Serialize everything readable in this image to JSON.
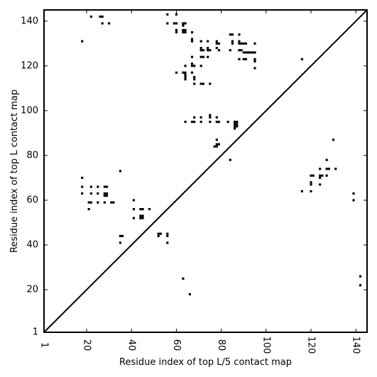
{
  "chart_data": {
    "type": "scatter",
    "xlabel": "Residue index of top L/5 contact map",
    "ylabel": "Residue index of top L contact map",
    "xlim": [
      1,
      145
    ],
    "ylim": [
      1,
      145
    ],
    "xticks": [
      1,
      20,
      40,
      60,
      80,
      100,
      120,
      140
    ],
    "yticks": [
      1,
      20,
      40,
      60,
      80,
      100,
      120,
      140
    ],
    "grid": false,
    "diagonal": true,
    "marker_color": "#000000",
    "points": [
      [
        22,
        142
      ],
      [
        26,
        142
      ],
      [
        27,
        142
      ],
      [
        27,
        139
      ],
      [
        30,
        139
      ],
      [
        18,
        131
      ],
      [
        56,
        143
      ],
      [
        60,
        143
      ],
      [
        56,
        139
      ],
      [
        59,
        139
      ],
      [
        60,
        139
      ],
      [
        63,
        139
      ],
      [
        64,
        139
      ],
      [
        63,
        138
      ],
      [
        60,
        136
      ],
      [
        63,
        136
      ],
      [
        64,
        136
      ],
      [
        60,
        135
      ],
      [
        63,
        135
      ],
      [
        64,
        135
      ],
      [
        67,
        135
      ],
      [
        67,
        132
      ],
      [
        67,
        131
      ],
      [
        71,
        131
      ],
      [
        74,
        131
      ],
      [
        78,
        131
      ],
      [
        78,
        130
      ],
      [
        79,
        130
      ],
      [
        71,
        128
      ],
      [
        74,
        128
      ],
      [
        78,
        128
      ],
      [
        71,
        127
      ],
      [
        72,
        127
      ],
      [
        74,
        127
      ],
      [
        75,
        127
      ],
      [
        79,
        127
      ],
      [
        84,
        134
      ],
      [
        85,
        134
      ],
      [
        88,
        134
      ],
      [
        85,
        131
      ],
      [
        88,
        131
      ],
      [
        85,
        130
      ],
      [
        88,
        130
      ],
      [
        89,
        130
      ],
      [
        90,
        130
      ],
      [
        91,
        130
      ],
      [
        95,
        130
      ],
      [
        84,
        127
      ],
      [
        88,
        127
      ],
      [
        89,
        127
      ],
      [
        90,
        126
      ],
      [
        91,
        126
      ],
      [
        92,
        126
      ],
      [
        93,
        126
      ],
      [
        94,
        126
      ],
      [
        95,
        126
      ],
      [
        71,
        124
      ],
      [
        72,
        124
      ],
      [
        74,
        124
      ],
      [
        67,
        124
      ],
      [
        88,
        123
      ],
      [
        90,
        123
      ],
      [
        91,
        123
      ],
      [
        95,
        123
      ],
      [
        95,
        122
      ],
      [
        95,
        119
      ],
      [
        116,
        123
      ],
      [
        67,
        121
      ],
      [
        67,
        120
      ],
      [
        68,
        120
      ],
      [
        71,
        120
      ],
      [
        64,
        120
      ],
      [
        60,
        117
      ],
      [
        63,
        117
      ],
      [
        64,
        117
      ],
      [
        67,
        117
      ],
      [
        64,
        116
      ],
      [
        64,
        115
      ],
      [
        68,
        115
      ],
      [
        68,
        114
      ],
      [
        64,
        114
      ],
      [
        68,
        112
      ],
      [
        71,
        112
      ],
      [
        72,
        112
      ],
      [
        75,
        112
      ],
      [
        68,
        97
      ],
      [
        71,
        97
      ],
      [
        75,
        98
      ],
      [
        75,
        97
      ],
      [
        78,
        97
      ],
      [
        64,
        95
      ],
      [
        67,
        95
      ],
      [
        68,
        95
      ],
      [
        71,
        95
      ],
      [
        75,
        95
      ],
      [
        78,
        95
      ],
      [
        79,
        95
      ],
      [
        83,
        95
      ],
      [
        86,
        95
      ],
      [
        87,
        95
      ],
      [
        86,
        94
      ],
      [
        87,
        94
      ],
      [
        86,
        93
      ],
      [
        87,
        93
      ],
      [
        86,
        92
      ],
      [
        78,
        87
      ],
      [
        78,
        85
      ],
      [
        79,
        85
      ],
      [
        77,
        84
      ],
      [
        78,
        84
      ],
      [
        84,
        78
      ],
      [
        35,
        73
      ],
      [
        127,
        78
      ],
      [
        130,
        87
      ],
      [
        18,
        70
      ],
      [
        18,
        66
      ],
      [
        22,
        66
      ],
      [
        25,
        66
      ],
      [
        28,
        66
      ],
      [
        29,
        66
      ],
      [
        18,
        63
      ],
      [
        22,
        63
      ],
      [
        25,
        63
      ],
      [
        28,
        63
      ],
      [
        29,
        63
      ],
      [
        28,
        62
      ],
      [
        29,
        62
      ],
      [
        21,
        59
      ],
      [
        22,
        59
      ],
      [
        25,
        59
      ],
      [
        28,
        59
      ],
      [
        31,
        59
      ],
      [
        32,
        59
      ],
      [
        21,
        56
      ],
      [
        41,
        60
      ],
      [
        41,
        56
      ],
      [
        44,
        56
      ],
      [
        45,
        56
      ],
      [
        48,
        56
      ],
      [
        41,
        52
      ],
      [
        44,
        53
      ],
      [
        45,
        53
      ],
      [
        44,
        52
      ],
      [
        45,
        52
      ],
      [
        35,
        44
      ],
      [
        36,
        44
      ],
      [
        35,
        41
      ],
      [
        52,
        45
      ],
      [
        53,
        45
      ],
      [
        52,
        44
      ],
      [
        56,
        45
      ],
      [
        56,
        44
      ],
      [
        56,
        41
      ],
      [
        120,
        71
      ],
      [
        121,
        71
      ],
      [
        124,
        71
      ],
      [
        125,
        71
      ],
      [
        124,
        70
      ],
      [
        124,
        74
      ],
      [
        127,
        74
      ],
      [
        128,
        74
      ],
      [
        131,
        74
      ],
      [
        127,
        71
      ],
      [
        120,
        68
      ],
      [
        120,
        67
      ],
      [
        124,
        67
      ],
      [
        116,
        64
      ],
      [
        120,
        64
      ],
      [
        139,
        63
      ],
      [
        139,
        60
      ],
      [
        63,
        25
      ],
      [
        66,
        18
      ],
      [
        142,
        26
      ],
      [
        142,
        22
      ]
    ]
  }
}
